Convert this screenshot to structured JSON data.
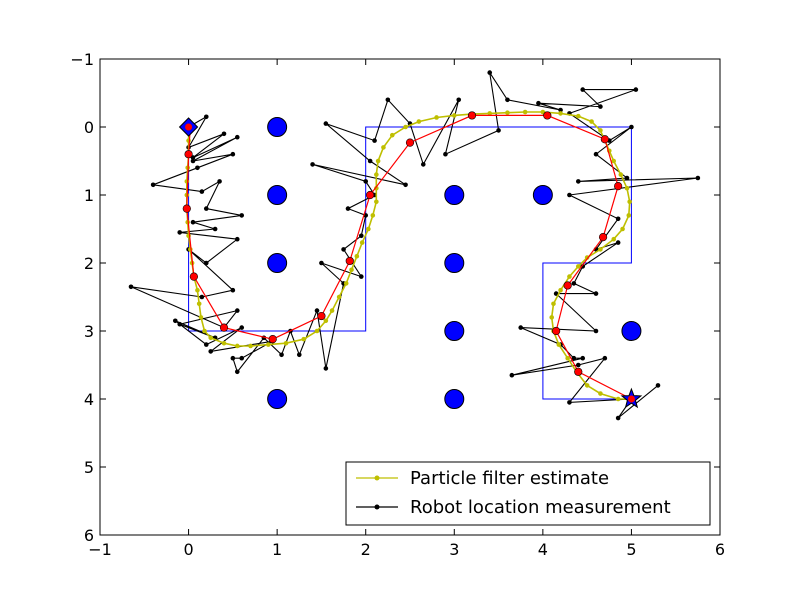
{
  "chart_data": {
    "type": "line",
    "title": "",
    "xlabel": "",
    "ylabel": "",
    "xlim": [
      -1,
      6
    ],
    "ylim": [
      6,
      -1
    ],
    "y_axis_inverted": true,
    "x_ticks": [
      "−1",
      "0",
      "1",
      "2",
      "3",
      "4",
      "5",
      "6"
    ],
    "y_ticks": [
      "−1",
      "0",
      "1",
      "2",
      "3",
      "4",
      "5",
      "6"
    ],
    "grid": false,
    "legend_position": "lower-right",
    "colors": {
      "particle": "#bfbf00",
      "measurement": "#000000",
      "true_path": "#ff0000",
      "landmark": "#0000ff",
      "boundary": "#0000ff"
    },
    "legend": [
      {
        "label": "Particle filter estimate",
        "color": "#bfbf00",
        "marker": "point"
      },
      {
        "label": "Robot location measurement",
        "color": "#000000",
        "marker": "point"
      }
    ],
    "landmarks": [
      [
        1,
        0
      ],
      [
        1,
        1
      ],
      [
        1,
        2
      ],
      [
        1,
        4
      ],
      [
        3,
        1
      ],
      [
        3,
        2
      ],
      [
        3,
        3
      ],
      [
        3,
        4
      ],
      [
        4,
        1
      ],
      [
        5,
        3
      ]
    ],
    "start": [
      0,
      0
    ],
    "goal": [
      5,
      4
    ],
    "boundary_path": [
      [
        0,
        0
      ],
      [
        0,
        3
      ],
      [
        2,
        3
      ],
      [
        2,
        0
      ],
      [
        5,
        0
      ],
      [
        5,
        2
      ],
      [
        4,
        2
      ],
      [
        4,
        4
      ],
      [
        5,
        4
      ]
    ],
    "true_path": [
      [
        0.02,
        0.0
      ],
      [
        0.0,
        0.4
      ],
      [
        -0.02,
        1.2
      ],
      [
        0.06,
        2.2
      ],
      [
        0.4,
        2.95
      ],
      [
        0.95,
        3.12
      ],
      [
        1.5,
        2.78
      ],
      [
        1.82,
        1.97
      ],
      [
        2.05,
        1.0
      ],
      [
        2.5,
        0.23
      ],
      [
        3.2,
        -0.17
      ],
      [
        4.05,
        -0.17
      ],
      [
        4.7,
        0.18
      ],
      [
        4.85,
        0.87
      ],
      [
        4.68,
        1.62
      ],
      [
        4.28,
        2.33
      ],
      [
        4.15,
        3.0
      ],
      [
        4.4,
        3.6
      ],
      [
        5.0,
        4.0
      ]
    ],
    "particle_estimate": [
      [
        0.0,
        0.0
      ],
      [
        0.0,
        0.2
      ],
      [
        0.0,
        0.4
      ],
      [
        -0.01,
        0.6
      ],
      [
        -0.02,
        0.8
      ],
      [
        -0.02,
        1.0
      ],
      [
        -0.02,
        1.2
      ],
      [
        -0.01,
        1.4
      ],
      [
        0.0,
        1.6
      ],
      [
        0.02,
        1.8
      ],
      [
        0.04,
        2.0
      ],
      [
        0.06,
        2.2
      ],
      [
        0.1,
        2.4
      ],
      [
        0.12,
        2.6
      ],
      [
        0.14,
        2.8
      ],
      [
        0.18,
        3.0
      ],
      [
        0.25,
        3.1
      ],
      [
        0.4,
        3.18
      ],
      [
        0.55,
        3.22
      ],
      [
        0.7,
        3.22
      ],
      [
        0.9,
        3.2
      ],
      [
        1.1,
        3.18
      ],
      [
        1.3,
        3.12
      ],
      [
        1.45,
        3.0
      ],
      [
        1.55,
        2.85
      ],
      [
        1.62,
        2.7
      ],
      [
        1.7,
        2.5
      ],
      [
        1.78,
        2.3
      ],
      [
        1.84,
        2.1
      ],
      [
        1.9,
        1.9
      ],
      [
        1.96,
        1.7
      ],
      [
        2.03,
        1.5
      ],
      [
        2.08,
        1.3
      ],
      [
        2.12,
        1.1
      ],
      [
        2.12,
        0.9
      ],
      [
        2.12,
        0.7
      ],
      [
        2.14,
        0.5
      ],
      [
        2.2,
        0.3
      ],
      [
        2.3,
        0.12
      ],
      [
        2.45,
        0.0
      ],
      [
        2.6,
        -0.08
      ],
      [
        2.8,
        -0.14
      ],
      [
        3.0,
        -0.17
      ],
      [
        3.2,
        -0.19
      ],
      [
        3.4,
        -0.2
      ],
      [
        3.6,
        -0.21
      ],
      [
        3.8,
        -0.22
      ],
      [
        4.0,
        -0.22
      ],
      [
        4.2,
        -0.2
      ],
      [
        4.4,
        -0.16
      ],
      [
        4.55,
        -0.08
      ],
      [
        4.65,
        0.05
      ],
      [
        4.7,
        0.2
      ],
      [
        4.75,
        0.35
      ],
      [
        4.8,
        0.5
      ],
      [
        4.88,
        0.7
      ],
      [
        4.95,
        0.9
      ],
      [
        4.98,
        1.1
      ],
      [
        4.97,
        1.3
      ],
      [
        4.9,
        1.5
      ],
      [
        4.8,
        1.65
      ],
      [
        4.65,
        1.8
      ],
      [
        4.5,
        1.92
      ],
      [
        4.4,
        2.05
      ],
      [
        4.3,
        2.2
      ],
      [
        4.2,
        2.4
      ],
      [
        4.12,
        2.6
      ],
      [
        4.1,
        2.8
      ],
      [
        4.12,
        3.0
      ],
      [
        4.18,
        3.2
      ],
      [
        4.28,
        3.4
      ],
      [
        4.38,
        3.6
      ],
      [
        4.5,
        3.8
      ],
      [
        4.65,
        3.92
      ],
      [
        4.85,
        4.0
      ],
      [
        5.0,
        4.0
      ]
    ],
    "measurements": [
      [
        0.0,
        0.0
      ],
      [
        0.2,
        -0.15
      ],
      [
        0.0,
        0.3
      ],
      [
        0.4,
        0.1
      ],
      [
        0.05,
        0.45
      ],
      [
        0.55,
        0.15
      ],
      [
        0.05,
        0.5
      ],
      [
        0.5,
        0.4
      ],
      [
        0.1,
        0.6
      ],
      [
        -0.4,
        0.85
      ],
      [
        0.15,
        0.95
      ],
      [
        0.35,
        0.8
      ],
      [
        0.2,
        1.2
      ],
      [
        0.6,
        1.3
      ],
      [
        0.05,
        1.4
      ],
      [
        0.3,
        1.5
      ],
      [
        -0.1,
        1.55
      ],
      [
        0.55,
        1.65
      ],
      [
        0.2,
        2.0
      ],
      [
        0.0,
        1.8
      ],
      [
        0.5,
        2.4
      ],
      [
        0.15,
        2.5
      ],
      [
        -0.65,
        2.35
      ],
      [
        0.4,
        2.95
      ],
      [
        0.55,
        2.7
      ],
      [
        -0.1,
        2.9
      ],
      [
        0.3,
        3.1
      ],
      [
        -0.15,
        2.85
      ],
      [
        0.2,
        3.2
      ],
      [
        0.6,
        2.95
      ],
      [
        0.25,
        3.3
      ],
      [
        0.95,
        3.15
      ],
      [
        0.6,
        3.4
      ],
      [
        0.5,
        3.4
      ],
      [
        0.55,
        3.6
      ],
      [
        0.85,
        3.1
      ],
      [
        1.05,
        3.35
      ],
      [
        1.15,
        3.0
      ],
      [
        1.25,
        3.35
      ],
      [
        1.45,
        2.7
      ],
      [
        1.55,
        3.55
      ],
      [
        1.75,
        2.3
      ],
      [
        1.5,
        2.0
      ],
      [
        1.95,
        2.2
      ],
      [
        1.75,
        1.8
      ],
      [
        1.95,
        1.6
      ],
      [
        2.0,
        1.3
      ],
      [
        1.8,
        1.2
      ],
      [
        2.1,
        1.0
      ],
      [
        2.0,
        0.8
      ],
      [
        1.4,
        0.55
      ],
      [
        2.45,
        0.85
      ],
      [
        2.05,
        0.5
      ],
      [
        1.55,
        -0.05
      ],
      [
        2.1,
        0.2
      ],
      [
        2.25,
        -0.4
      ],
      [
        2.5,
        -0.05
      ],
      [
        2.65,
        0.55
      ],
      [
        3.05,
        -0.4
      ],
      [
        2.9,
        0.4
      ],
      [
        3.5,
        0.05
      ],
      [
        3.4,
        -0.8
      ],
      [
        3.6,
        -0.4
      ],
      [
        4.2,
        -0.25
      ],
      [
        3.95,
        -0.35
      ],
      [
        4.65,
        -0.3
      ],
      [
        4.45,
        -0.55
      ],
      [
        5.05,
        -0.55
      ],
      [
        4.3,
        -0.2
      ],
      [
        4.75,
        0.2
      ],
      [
        5.0,
        0.0
      ],
      [
        4.6,
        0.4
      ],
      [
        4.95,
        0.75
      ],
      [
        4.4,
        0.8
      ],
      [
        5.75,
        0.75
      ],
      [
        4.3,
        1.0
      ],
      [
        4.85,
        1.35
      ],
      [
        4.6,
        1.8
      ],
      [
        4.85,
        1.7
      ],
      [
        4.45,
        2.05
      ],
      [
        4.35,
        2.3
      ],
      [
        4.6,
        2.45
      ],
      [
        4.15,
        2.45
      ],
      [
        4.6,
        3.0
      ],
      [
        3.75,
        2.95
      ],
      [
        4.2,
        3.2
      ],
      [
        4.35,
        3.4
      ],
      [
        4.45,
        3.4
      ],
      [
        3.65,
        3.65
      ],
      [
        4.4,
        3.5
      ],
      [
        4.7,
        3.4
      ],
      [
        4.3,
        4.05
      ],
      [
        5.0,
        4.0
      ],
      [
        4.85,
        4.28
      ],
      [
        5.3,
        3.8
      ]
    ]
  }
}
